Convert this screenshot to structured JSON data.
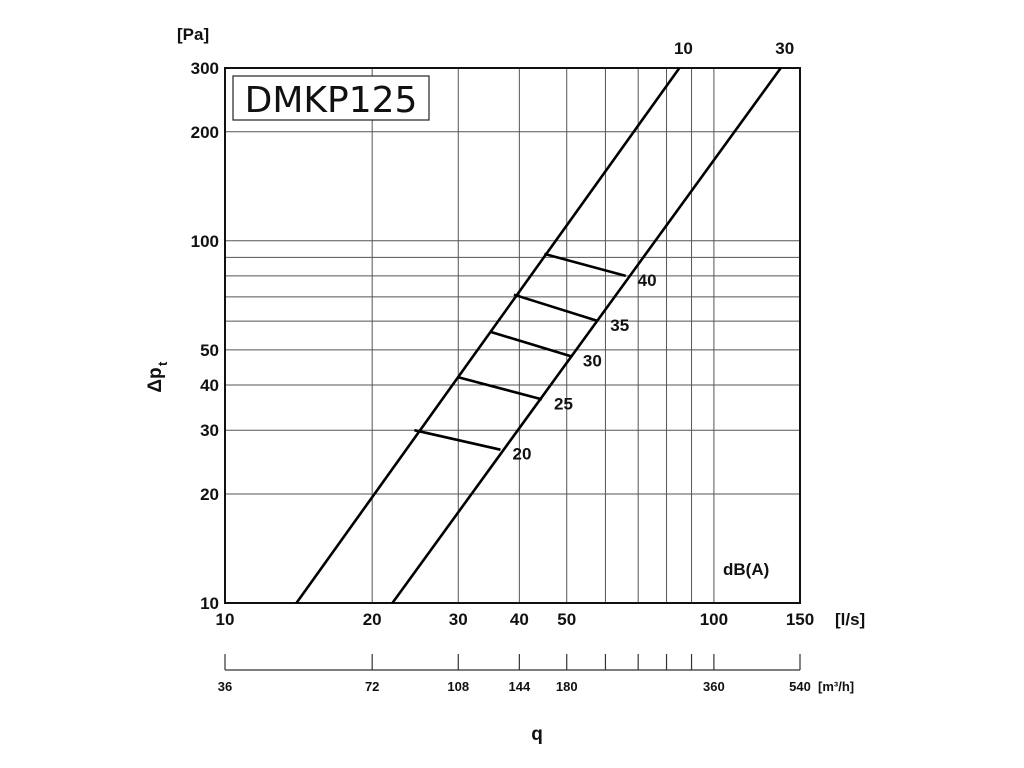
{
  "chart_data": {
    "type": "line",
    "title": "DMKP125",
    "x_scale": "log",
    "y_scale": "log",
    "xlim": [
      10,
      150
    ],
    "ylim": [
      10,
      300
    ],
    "x_unit": "[l/s]",
    "y_unit": "[Pa]",
    "ylabel_main": "Δp",
    "ylabel_sub": "t",
    "xlabel": "q",
    "x_ticks": [
      10,
      20,
      30,
      40,
      50,
      100,
      150
    ],
    "x_minor": [
      60,
      70,
      80,
      90
    ],
    "y_ticks": [
      10,
      20,
      30,
      40,
      50,
      100,
      200,
      300
    ],
    "y_minor": [
      60,
      70,
      80,
      90
    ],
    "secondary_x_unit": "[m³/h]",
    "secondary_x_ticks": [
      {
        "label": "36",
        "lps": 10
      },
      {
        "label": "72",
        "lps": 20
      },
      {
        "label": "108",
        "lps": 30
      },
      {
        "label": "144",
        "lps": 40
      },
      {
        "label": "180",
        "lps": 50
      },
      {
        "label": "",
        "lps": 60
      },
      {
        "label": "",
        "lps": 70
      },
      {
        "label": "",
        "lps": 80
      },
      {
        "label": "",
        "lps": 90
      },
      {
        "label": "360",
        "lps": 100
      },
      {
        "label": "540",
        "lps": 150
      }
    ],
    "series": [
      {
        "name": "10",
        "x": [
          14,
          85
        ],
        "y": [
          10,
          300
        ]
      },
      {
        "name": "30",
        "x": [
          22,
          137
        ],
        "y": [
          10,
          300
        ]
      }
    ],
    "sound_lines_label": "dB(A)",
    "sound_lines": [
      {
        "label": "20",
        "x": [
          24.4,
          36.6
        ],
        "y": [
          30,
          26.5
        ]
      },
      {
        "label": "25",
        "x": [
          30,
          44.5
        ],
        "y": [
          42,
          36.5
        ]
      },
      {
        "label": "30",
        "x": [
          35,
          51
        ],
        "y": [
          56,
          48
        ]
      },
      {
        "label": "35",
        "x": [
          39,
          58
        ],
        "y": [
          71,
          60
        ]
      },
      {
        "label": "40",
        "x": [
          45,
          66
        ],
        "y": [
          92,
          80
        ]
      }
    ]
  }
}
